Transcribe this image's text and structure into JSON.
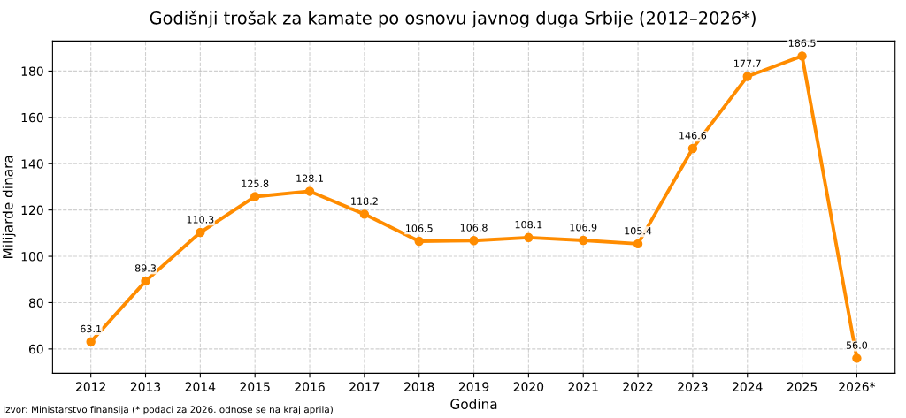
{
  "chart_data": {
    "type": "line",
    "title": "Godišnji trošak za kamate po osnovu javnog duga Srbije (2012–2026*)",
    "xlabel": "Godina",
    "ylabel": "Milijarde dinara",
    "categories": [
      "2012",
      "2013",
      "2014",
      "2015",
      "2016",
      "2017",
      "2018",
      "2019",
      "2020",
      "2021",
      "2022",
      "2023",
      "2024",
      "2025",
      "2026*"
    ],
    "series": [
      {
        "color": "#ff8c00",
        "values": [
          63.1,
          89.3,
          110.3,
          125.8,
          128.1,
          118.2,
          106.5,
          106.8,
          108.1,
          106.9,
          105.4,
          146.6,
          177.7,
          186.5,
          56.0
        ],
        "value_labels": [
          "63.1",
          "89.3",
          "110.3",
          "125.8",
          "128.1",
          "118.2",
          "106.5",
          "106.8",
          "108.1",
          "106.9",
          "105.4",
          "146.6",
          "177.7",
          "186.5",
          "56.0"
        ]
      }
    ],
    "ylim": [
      49.5,
      193.0
    ],
    "yticks": [
      60,
      80,
      100,
      120,
      140,
      160,
      180
    ],
    "grid": true,
    "marker": "circle",
    "line_style": "solid",
    "annotations": [
      "Izvor: Ministarstvo finansija (* podaci za 2026. odnose se na kraj aprila)"
    ]
  }
}
